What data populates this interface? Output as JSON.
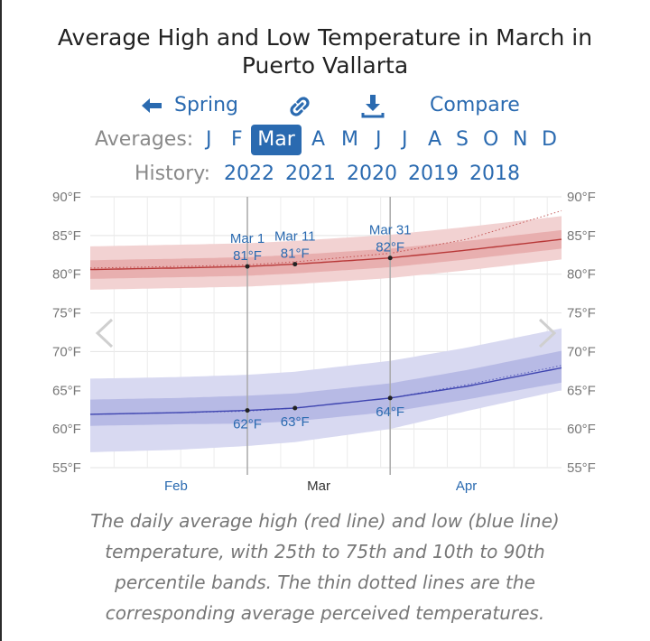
{
  "title": "Average High and Low Temperature in March in Puerto Vallarta",
  "nav": {
    "spring_label": "Spring",
    "compare_label": "Compare",
    "link_icon": "link-icon",
    "download_icon": "download-icon",
    "back_icon": "arrow-left-icon"
  },
  "averages": {
    "label": "Averages:",
    "months": [
      "J",
      "F",
      "Mar",
      "A",
      "M",
      "J",
      "J",
      "A",
      "S",
      "O",
      "N",
      "D"
    ],
    "active": "Mar"
  },
  "history": {
    "label": "History:",
    "years": [
      "2022",
      "2021",
      "2020",
      "2019",
      "2018"
    ]
  },
  "chart_data": {
    "type": "line",
    "y_unit": "°F",
    "y_ticks": [
      90,
      85,
      80,
      75,
      70,
      65,
      60,
      55
    ],
    "y_tick_labels": [
      "90°F",
      "85°F",
      "80°F",
      "75°F",
      "70°F",
      "65°F",
      "60°F",
      "55°F"
    ],
    "ylim": [
      55,
      90
    ],
    "x_days": [
      -33,
      66
    ],
    "x_tick_labels": [
      {
        "label": "Feb",
        "day": -15
      },
      {
        "label": "Mar",
        "day": 15
      },
      {
        "label": "Apr",
        "day": 46
      }
    ],
    "grid": true,
    "series": [
      {
        "kind": "high",
        "color": "#b83838",
        "days": [
          -33,
          -15,
          0,
          10,
          30,
          46,
          66
        ],
        "mean": [
          80.6,
          80.8,
          81.0,
          81.3,
          82.1,
          83.1,
          84.5
        ],
        "p25": [
          79.4,
          79.6,
          79.8,
          80.1,
          80.9,
          81.9,
          83.3
        ],
        "p75": [
          81.8,
          82.0,
          82.2,
          82.5,
          83.3,
          84.3,
          85.7
        ],
        "p10": [
          78.0,
          78.2,
          78.4,
          78.7,
          79.5,
          80.5,
          81.9
        ],
        "p90": [
          83.6,
          83.8,
          84.0,
          84.3,
          85.1,
          86.1,
          87.5
        ],
        "feels": [
          80.8,
          81.0,
          81.2,
          81.6,
          82.7,
          84.5,
          88.2
        ]
      },
      {
        "kind": "low",
        "color": "#3f45b0",
        "days": [
          -33,
          -15,
          0,
          10,
          30,
          46,
          66
        ],
        "mean": [
          61.9,
          62.1,
          62.4,
          62.7,
          64.0,
          65.5,
          67.9
        ],
        "p25": [
          60.4,
          60.6,
          60.7,
          61.0,
          62.2,
          63.8,
          66.0
        ],
        "p75": [
          63.8,
          64.0,
          64.3,
          64.6,
          65.9,
          67.6,
          70.1
        ],
        "p10": [
          57.0,
          57.3,
          57.8,
          58.3,
          60.0,
          62.3,
          65.0
        ],
        "p90": [
          66.5,
          66.7,
          67.0,
          67.4,
          68.8,
          70.5,
          73.0
        ],
        "feels": [
          61.9,
          62.1,
          62.3,
          62.7,
          64.0,
          65.7,
          68.2
        ]
      }
    ],
    "annotations": [
      {
        "day": 0,
        "date": "Mar 1",
        "high": "81°F",
        "low": "62°F",
        "high_value": 81,
        "low_value": 62
      },
      {
        "day": 10,
        "date": "Mar 11",
        "high": "81°F",
        "low": "63°F",
        "high_value": 81,
        "low_value": 63
      },
      {
        "day": 30,
        "date": "Mar 31",
        "high": "82°F",
        "low": "64°F",
        "high_value": 82,
        "low_value": 64
      }
    ]
  },
  "caption": "The daily average high (red line) and low (blue line) temperature, with 25th to 75th and 10th to 90th percentile bands. The thin dotted lines are the corresponding average perceived temperatures."
}
